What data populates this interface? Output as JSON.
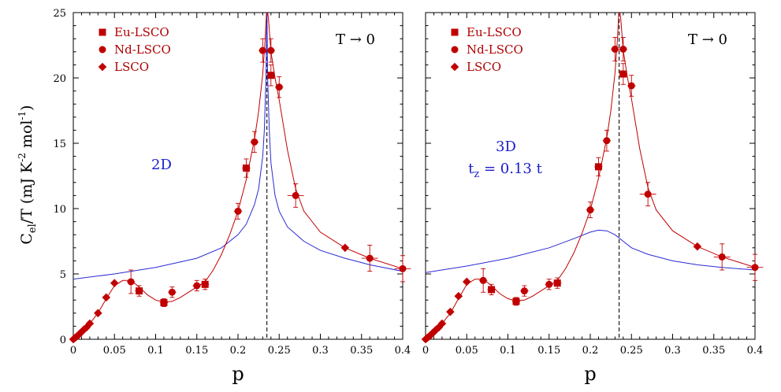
{
  "figure": {
    "ylabel": {
      "main": "C",
      "sub": "el",
      "rest": "/T  (mJ K",
      "sup1": "-2",
      "mid": " mol",
      "sup2": "-1",
      "end": ")"
    }
  },
  "colors": {
    "data": "#c00000",
    "model": "#2a2ad4",
    "axis": "#000000",
    "legend_text": "#b00000"
  },
  "chart_data": [
    {
      "type": "scatter",
      "panel": "left",
      "title": "",
      "xlabel": "p",
      "ylabel": "Cel/T (mJ K-2 mol-1)",
      "xlim": [
        0,
        0.4
      ],
      "ylim": [
        0,
        25
      ],
      "xticks": [
        "0",
        "0.05",
        "0.1",
        "0.15",
        "0.2",
        "0.25",
        "0.3",
        "0.35",
        "0.4"
      ],
      "yticks": [
        "0",
        "5",
        "10",
        "15",
        "20",
        "25"
      ],
      "annotation": "T → 0",
      "model_label": [
        "2D"
      ],
      "vline_x": 0.235,
      "legend": [
        {
          "label": "Eu-LSCO",
          "marker": "square"
        },
        {
          "label": "Nd-LSCO",
          "marker": "circle"
        },
        {
          "label": "LSCO",
          "marker": "diamond"
        }
      ],
      "series": [
        {
          "name": "Eu-LSCO",
          "marker": "square",
          "points": [
            [
              0.08,
              3.7,
              0.005,
              0.4
            ],
            [
              0.11,
              2.8,
              0.005,
              0.3
            ],
            [
              0.16,
              4.2,
              0.005,
              0.4
            ],
            [
              0.21,
              13.1,
              0.005,
              0.7
            ],
            [
              0.24,
              20.2,
              0.005,
              0.8
            ]
          ]
        },
        {
          "name": "Nd-LSCO",
          "marker": "circle",
          "points": [
            [
              0.07,
              4.4,
              0.005,
              0.9
            ],
            [
              0.12,
              3.6,
              0.005,
              0.4
            ],
            [
              0.15,
              4.1,
              0.005,
              0.4
            ],
            [
              0.2,
              9.8,
              0.005,
              0.6
            ],
            [
              0.22,
              15.1,
              0.005,
              0.8
            ],
            [
              0.23,
              22.1,
              0.005,
              0.9
            ],
            [
              0.24,
              22.1,
              0.005,
              0.9
            ],
            [
              0.25,
              19.3,
              0.005,
              0.8
            ],
            [
              0.27,
              11.0,
              0.01,
              0.9
            ],
            [
              0.36,
              6.2,
              0.01,
              1.0
            ],
            [
              0.4,
              5.4,
              0.01,
              1.0
            ]
          ]
        },
        {
          "name": "LSCO",
          "marker": "diamond",
          "points": [
            [
              0,
              0,
              0,
              0
            ],
            [
              0.002,
              0.1,
              0,
              0
            ],
            [
              0.004,
              0.2,
              0,
              0
            ],
            [
              0.006,
              0.3,
              0,
              0
            ],
            [
              0.008,
              0.45,
              0,
              0
            ],
            [
              0.01,
              0.55,
              0,
              0
            ],
            [
              0.013,
              0.75,
              0,
              0
            ],
            [
              0.016,
              0.9,
              0,
              0
            ],
            [
              0.02,
              1.2,
              0,
              0
            ],
            [
              0.03,
              2.0,
              0,
              0
            ],
            [
              0.04,
              3.2,
              0,
              0
            ],
            [
              0.05,
              4.3,
              0,
              0
            ],
            [
              0.33,
              7.0,
              0,
              0
            ]
          ]
        }
      ],
      "fit_curve": [
        [
          0,
          0
        ],
        [
          0.01,
          0.5
        ],
        [
          0.02,
          1.2
        ],
        [
          0.03,
          2.0
        ],
        [
          0.04,
          3.1
        ],
        [
          0.05,
          4.1
        ],
        [
          0.06,
          4.5
        ],
        [
          0.07,
          4.5
        ],
        [
          0.08,
          4.0
        ],
        [
          0.09,
          3.4
        ],
        [
          0.1,
          3.0
        ],
        [
          0.11,
          2.85
        ],
        [
          0.12,
          2.9
        ],
        [
          0.13,
          3.2
        ],
        [
          0.14,
          3.6
        ],
        [
          0.15,
          4.0
        ],
        [
          0.16,
          4.4
        ],
        [
          0.17,
          5.3
        ],
        [
          0.18,
          6.5
        ],
        [
          0.19,
          8.0
        ],
        [
          0.2,
          9.8
        ],
        [
          0.21,
          12.2
        ],
        [
          0.22,
          15.3
        ],
        [
          0.225,
          17.4
        ],
        [
          0.23,
          20.3
        ],
        [
          0.233,
          23.0
        ],
        [
          0.235,
          25.5
        ],
        [
          0.237,
          24.5
        ],
        [
          0.24,
          22.0
        ],
        [
          0.245,
          20.0
        ],
        [
          0.25,
          18.3
        ],
        [
          0.26,
          14.5
        ],
        [
          0.27,
          11.5
        ],
        [
          0.28,
          9.8
        ],
        [
          0.3,
          8.2
        ],
        [
          0.33,
          7.0
        ],
        [
          0.36,
          6.2
        ],
        [
          0.4,
          5.4
        ],
        [
          0.41,
          5.2
        ]
      ],
      "model_curve": [
        [
          0,
          4.6
        ],
        [
          0.05,
          5.0
        ],
        [
          0.1,
          5.5
        ],
        [
          0.15,
          6.2
        ],
        [
          0.18,
          7.0
        ],
        [
          0.2,
          8.0
        ],
        [
          0.21,
          8.8
        ],
        [
          0.22,
          10.3
        ],
        [
          0.225,
          11.5
        ],
        [
          0.23,
          14.0
        ],
        [
          0.232,
          16.0
        ],
        [
          0.234,
          20.0
        ],
        [
          0.235,
          25.5
        ],
        [
          0.236,
          20.0
        ],
        [
          0.238,
          16.0
        ],
        [
          0.24,
          13.5
        ],
        [
          0.245,
          11.0
        ],
        [
          0.25,
          9.8
        ],
        [
          0.26,
          8.6
        ],
        [
          0.28,
          7.5
        ],
        [
          0.3,
          6.8
        ],
        [
          0.33,
          6.2
        ],
        [
          0.36,
          5.7
        ],
        [
          0.4,
          5.2
        ],
        [
          0.41,
          5.0
        ]
      ]
    },
    {
      "type": "scatter",
      "panel": "right",
      "title": "",
      "xlabel": "p",
      "ylabel": "",
      "xlim": [
        0,
        0.4
      ],
      "ylim": [
        0,
        25
      ],
      "xticks": [
        "0",
        "0.05",
        "0.1",
        "0.15",
        "0.2",
        "0.25",
        "0.3",
        "0.35",
        "0.4"
      ],
      "yticks": [],
      "annotation": "T → 0",
      "model_label": [
        "3D",
        "t",
        "z",
        " = 0.13 t"
      ],
      "vline_x": 0.235,
      "legend": [
        {
          "label": "Eu-LSCO",
          "marker": "square"
        },
        {
          "label": "Nd-LSCO",
          "marker": "circle"
        },
        {
          "label": "LSCO",
          "marker": "diamond"
        }
      ],
      "series": [
        {
          "name": "Eu-LSCO",
          "marker": "square",
          "points": [
            [
              0.08,
              3.8,
              0.005,
              0.4
            ],
            [
              0.11,
              2.9,
              0.005,
              0.3
            ],
            [
              0.16,
              4.3,
              0.005,
              0.4
            ],
            [
              0.21,
              13.2,
              0.005,
              0.7
            ],
            [
              0.24,
              20.3,
              0.005,
              0.8
            ]
          ]
        },
        {
          "name": "Nd-LSCO",
          "marker": "circle",
          "points": [
            [
              0.07,
              4.5,
              0.005,
              0.9
            ],
            [
              0.12,
              3.7,
              0.005,
              0.4
            ],
            [
              0.15,
              4.2,
              0.005,
              0.4
            ],
            [
              0.2,
              9.9,
              0.005,
              0.6
            ],
            [
              0.22,
              15.2,
              0.005,
              0.8
            ],
            [
              0.23,
              22.2,
              0.005,
              0.9
            ],
            [
              0.24,
              22.2,
              0.005,
              0.9
            ],
            [
              0.25,
              19.4,
              0.005,
              0.8
            ],
            [
              0.27,
              11.1,
              0.01,
              0.9
            ],
            [
              0.36,
              6.3,
              0.01,
              1.0
            ],
            [
              0.4,
              5.5,
              0.01,
              1.0
            ]
          ]
        },
        {
          "name": "LSCO",
          "marker": "diamond",
          "points": [
            [
              0,
              0,
              0,
              0
            ],
            [
              0.002,
              0.1,
              0,
              0
            ],
            [
              0.004,
              0.2,
              0,
              0
            ],
            [
              0.006,
              0.3,
              0,
              0
            ],
            [
              0.008,
              0.45,
              0,
              0
            ],
            [
              0.01,
              0.55,
              0,
              0
            ],
            [
              0.013,
              0.75,
              0,
              0
            ],
            [
              0.016,
              0.9,
              0,
              0
            ],
            [
              0.02,
              1.2,
              0,
              0
            ],
            [
              0.03,
              2.1,
              0,
              0
            ],
            [
              0.04,
              3.3,
              0,
              0
            ],
            [
              0.05,
              4.4,
              0,
              0
            ],
            [
              0.33,
              7.1,
              0,
              0
            ]
          ]
        }
      ],
      "fit_curve": [
        [
          0,
          0
        ],
        [
          0.01,
          0.5
        ],
        [
          0.02,
          1.2
        ],
        [
          0.03,
          2.0
        ],
        [
          0.04,
          3.1
        ],
        [
          0.05,
          4.2
        ],
        [
          0.06,
          4.6
        ],
        [
          0.07,
          4.6
        ],
        [
          0.08,
          4.1
        ],
        [
          0.09,
          3.5
        ],
        [
          0.1,
          3.1
        ],
        [
          0.11,
          2.95
        ],
        [
          0.12,
          3.0
        ],
        [
          0.13,
          3.3
        ],
        [
          0.14,
          3.7
        ],
        [
          0.15,
          4.1
        ],
        [
          0.16,
          4.5
        ],
        [
          0.17,
          5.4
        ],
        [
          0.18,
          6.6
        ],
        [
          0.19,
          8.1
        ],
        [
          0.2,
          9.9
        ],
        [
          0.21,
          12.3
        ],
        [
          0.22,
          15.4
        ],
        [
          0.225,
          17.5
        ],
        [
          0.23,
          20.4
        ],
        [
          0.233,
          23.0
        ],
        [
          0.235,
          25.5
        ],
        [
          0.237,
          24.5
        ],
        [
          0.24,
          22.1
        ],
        [
          0.245,
          20.1
        ],
        [
          0.25,
          18.4
        ],
        [
          0.26,
          14.6
        ],
        [
          0.27,
          11.6
        ],
        [
          0.28,
          9.9
        ],
        [
          0.3,
          8.3
        ],
        [
          0.33,
          7.1
        ],
        [
          0.36,
          6.3
        ],
        [
          0.4,
          5.5
        ],
        [
          0.41,
          5.3
        ]
      ],
      "model_curve": [
        [
          0,
          5.1
        ],
        [
          0.05,
          5.6
        ],
        [
          0.1,
          6.2
        ],
        [
          0.15,
          7.0
        ],
        [
          0.18,
          7.7
        ],
        [
          0.2,
          8.2
        ],
        [
          0.21,
          8.35
        ],
        [
          0.22,
          8.3
        ],
        [
          0.23,
          8.0
        ],
        [
          0.24,
          7.5
        ],
        [
          0.25,
          7.0
        ],
        [
          0.27,
          6.5
        ],
        [
          0.3,
          6.0
        ],
        [
          0.33,
          5.7
        ],
        [
          0.36,
          5.5
        ],
        [
          0.4,
          5.3
        ],
        [
          0.41,
          5.25
        ]
      ]
    }
  ]
}
